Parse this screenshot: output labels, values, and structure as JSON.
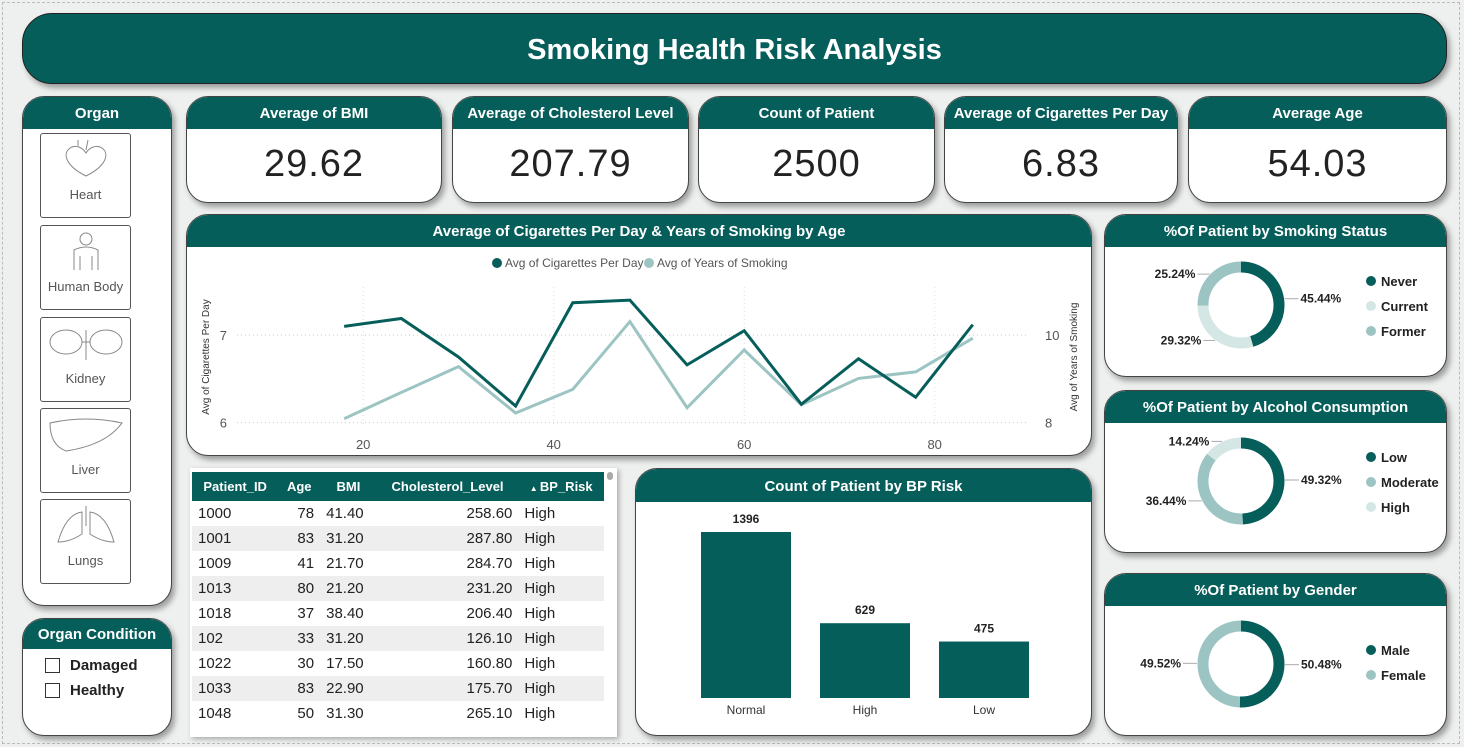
{
  "title": "Smoking Health Risk Analysis",
  "colors": {
    "dark": "#065e5b",
    "mid": "#9cc4c3",
    "light": "#d4e7e4"
  },
  "organ_panel": {
    "title": "Organ",
    "items": [
      {
        "label": "Heart",
        "icon": "heart-icon"
      },
      {
        "label": "Human Body",
        "icon": "human-body-icon"
      },
      {
        "label": "Kidney",
        "icon": "kidney-icon"
      },
      {
        "label": "Liver",
        "icon": "liver-icon"
      },
      {
        "label": "Lungs",
        "icon": "lungs-icon"
      }
    ]
  },
  "organ_condition": {
    "title": "Organ Condition",
    "options": [
      "Damaged",
      "Healthy"
    ]
  },
  "kpis": [
    {
      "label": "Average of BMI",
      "value": "29.62"
    },
    {
      "label": "Average of Cholesterol Level",
      "value": "207.79"
    },
    {
      "label": "Count of Patient",
      "value": "2500"
    },
    {
      "label": "Average of Cigarettes Per Day",
      "value": "6.83"
    },
    {
      "label": "Average Age",
      "value": "54.03"
    }
  ],
  "table": {
    "columns": [
      "Patient_ID",
      "Age",
      "BMI",
      "Cholesterol_Level",
      "BP_Risk"
    ],
    "rows": [
      [
        "1000",
        "78",
        "41.40",
        "258.60",
        "High"
      ],
      [
        "1001",
        "83",
        "31.20",
        "287.80",
        "High"
      ],
      [
        "1009",
        "41",
        "21.70",
        "284.70",
        "High"
      ],
      [
        "1013",
        "80",
        "21.20",
        "231.20",
        "High"
      ],
      [
        "1018",
        "37",
        "38.40",
        "206.40",
        "High"
      ],
      [
        "102",
        "33",
        "31.20",
        "126.10",
        "High"
      ],
      [
        "1022",
        "30",
        "17.50",
        "160.80",
        "High"
      ],
      [
        "1033",
        "83",
        "22.90",
        "175.70",
        "High"
      ],
      [
        "1048",
        "50",
        "31.30",
        "265.10",
        "High"
      ]
    ]
  },
  "chart_data": [
    {
      "type": "line",
      "title": "Average of Cigarettes Per Day & Years of Smoking by Age",
      "xlabel": "",
      "ylabel": "Avg of Cigarettes Per Day",
      "y2label": "Avg of Years of Smoking",
      "x": [
        18,
        24,
        30,
        36,
        42,
        48,
        54,
        60,
        66,
        72,
        78,
        84
      ],
      "xticks": [
        "20",
        "40",
        "60",
        "80"
      ],
      "yticks": [
        "6",
        "7"
      ],
      "y2ticks": [
        "8",
        "10"
      ],
      "ylim": [
        5.95,
        7.55
      ],
      "y2lim": [
        7.9,
        11.1
      ],
      "xlim": [
        12,
        92
      ],
      "series": [
        {
          "name": "Avg of Cigarettes Per Day",
          "axis": "left",
          "values": [
            7.1,
            7.19,
            6.75,
            6.19,
            7.37,
            7.4,
            6.66,
            7.05,
            6.21,
            6.73,
            6.29,
            7.12
          ]
        },
        {
          "name": "Avg of Years of Smoking",
          "axis": "right",
          "values": [
            8.09,
            8.69,
            9.28,
            8.22,
            8.76,
            10.31,
            8.34,
            9.66,
            8.41,
            9.01,
            9.16,
            9.93
          ]
        }
      ],
      "legend": "top-center"
    },
    {
      "type": "bar",
      "title": "Count of Patient by BP Risk",
      "categories": [
        "Normal",
        "High",
        "Low"
      ],
      "values": [
        1396,
        629,
        475
      ],
      "ylim": [
        0,
        1396
      ]
    },
    {
      "type": "pie",
      "title": "%Of Patient by Smoking Status",
      "labels": [
        "Never",
        "Current",
        "Former"
      ],
      "values": [
        45.44,
        29.32,
        25.24
      ],
      "value_labels": [
        "45.44%",
        "29.32%",
        "25.24%"
      ]
    },
    {
      "type": "pie",
      "title": "%Of Patient by Alcohol Consumption",
      "labels": [
        "Low",
        "Moderate",
        "High"
      ],
      "values": [
        49.32,
        36.44,
        14.24
      ],
      "value_labels": [
        "49.32%",
        "36.44%",
        "14.24%"
      ]
    },
    {
      "type": "pie",
      "title": "%Of Patient by Gender",
      "labels": [
        "Male",
        "Female"
      ],
      "values": [
        50.48,
        49.52
      ],
      "value_labels": [
        "50.48%",
        "49.52%"
      ]
    }
  ]
}
